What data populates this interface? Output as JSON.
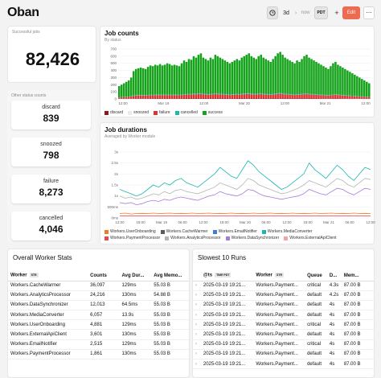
{
  "header": {
    "title": "Oban",
    "range": "3d",
    "now_label": "now",
    "timezone": "PDT",
    "plus": "+",
    "edit_label": "Edit",
    "more": "⋯"
  },
  "kpi": {
    "label": "Successful jobs",
    "value": "82,426"
  },
  "other_status": {
    "label": "Other status counts",
    "items": [
      {
        "label": "discard",
        "value": "839"
      },
      {
        "label": "snoozed",
        "value": "798"
      },
      {
        "label": "failure",
        "value": "8,273"
      },
      {
        "label": "cancelled",
        "value": "4,046"
      }
    ]
  },
  "job_counts": {
    "title": "Job counts",
    "subtitle": "By status",
    "y_ticks": [
      "700",
      "600",
      "500",
      "400",
      "300",
      "200",
      "100",
      "0"
    ],
    "x_ticks": [
      "12:00",
      "Mar 19",
      "12:00",
      "Mar 20",
      "12:00",
      "Mar 21",
      "12:00"
    ],
    "legend": [
      {
        "name": "discard",
        "color": "#8b1a1a"
      },
      {
        "name": "snoozed",
        "color": "#ebebeb"
      },
      {
        "name": "failure",
        "color": "#e03131"
      },
      {
        "name": "cancelled",
        "color": "#1cb5b0"
      },
      {
        "name": "success",
        "color": "#15a31b"
      }
    ]
  },
  "job_durations": {
    "title": "Job durations",
    "subtitle": "Averaged by Worker module",
    "y_ticks": [
      "3s",
      "2.5s",
      "2s",
      "1.5s",
      "1s",
      "500ms",
      "0ms"
    ],
    "x_ticks": [
      "12:00",
      "18:00",
      "Mar 19",
      "06:00",
      "12:00",
      "18:00",
      "Mar 20",
      "06:00",
      "12:00",
      "18:00",
      "Mar 21",
      "06:00",
      "12:00"
    ],
    "legend": [
      {
        "name": "Workers.UserOnboarding",
        "color": "#f07c22"
      },
      {
        "name": "Workers.CacheWarmer",
        "color": "#5c5c5c"
      },
      {
        "name": "Workers.EmailNotifier",
        "color": "#3b7dd8"
      },
      {
        "name": "Workers.MediaConverter",
        "color": "#1cb5b0"
      },
      {
        "name": "Workers.PaymentProcessor",
        "color": "#e2485a"
      },
      {
        "name": "Workers.AnalyticsProcessor",
        "color": "#b5b5b5"
      },
      {
        "name": "Workers.DataSynchronizer",
        "color": "#a77bd9"
      },
      {
        "name": "Workers.ExternalApiClient",
        "color": "#f5a3a3"
      }
    ]
  },
  "worker_stats": {
    "title": "Overall Worker Stats",
    "columns": [
      "Worker",
      "Counts",
      "Avg Dur...",
      "Avg Memo..."
    ],
    "tag": "STR",
    "rows": [
      [
        "Workers.CacheWarmer",
        "36,097",
        "129ms",
        "55.03 B"
      ],
      [
        "Workers.AnalyticsProcessor",
        "24,216",
        "130ms",
        "54.88 B"
      ],
      [
        "Workers.DataSynchronizer",
        "12,013",
        "64.5ms",
        "55.03 B"
      ],
      [
        "Workers.MediaConverter",
        "6,057",
        "13.9s",
        "55.03 B"
      ],
      [
        "Workers.UserOnboarding",
        "4,881",
        "129ms",
        "55.03 B"
      ],
      [
        "Workers.ExternalApiClient",
        "3,601",
        "130ms",
        "55.03 B"
      ],
      [
        "Workers.EmailNotifier",
        "2,515",
        "129ms",
        "55.03 B"
      ],
      [
        "Workers.PaymentProcessor",
        "1,861",
        "130ms",
        "55.03 B"
      ]
    ]
  },
  "slowest_runs": {
    "title": "Slowest 10 Runs",
    "columns": [
      "@ts",
      "Worker",
      "Queue",
      "D...",
      "Mem..."
    ],
    "tags": {
      "ts": "TIME PDT",
      "worker": "STR"
    },
    "rows": [
      [
        "2025-03-19 19:21...",
        "Workers.Payment...",
        "critical",
        "4.3s",
        "87.00 B"
      ],
      [
        "2025-03-19 19:21...",
        "Workers.Payment...",
        "default",
        "4.2s",
        "87.00 B"
      ],
      [
        "2025-03-19 19:21...",
        "Workers.Payment...",
        "default",
        "4s",
        "87.00 B"
      ],
      [
        "2025-03-19 19:21...",
        "Workers.Payment...",
        "default",
        "4s",
        "87.00 B"
      ],
      [
        "2025-03-19 19:21...",
        "Workers.Payment...",
        "critical",
        "4s",
        "87.00 B"
      ],
      [
        "2025-03-19 19:21...",
        "Workers.Payment...",
        "default",
        "4s",
        "87.00 B"
      ],
      [
        "2025-03-19 19:21...",
        "Workers.Payment...",
        "critical",
        "4s",
        "87.00 B"
      ],
      [
        "2025-03-19 19:21...",
        "Workers.Payment...",
        "default",
        "4s",
        "87.00 B"
      ],
      [
        "2025-03-19 19:21...",
        "Workers.Payment...",
        "default",
        "4s",
        "87.00 B"
      ]
    ]
  },
  "chart_data": [
    {
      "type": "bar",
      "title": "Job counts",
      "ylim": [
        0,
        700
      ],
      "stacked": true,
      "series_order": [
        "discard",
        "failure",
        "cancelled",
        "success"
      ],
      "bucket_totals": [
        180,
        200,
        220,
        240,
        260,
        300,
        390,
        420,
        430,
        440,
        430,
        420,
        450,
        470,
        460,
        480,
        470,
        490,
        470,
        480,
        500,
        490,
        470,
        480,
        470,
        460,
        500,
        540,
        520,
        560,
        550,
        600,
        580,
        620,
        640,
        580,
        560,
        540,
        580,
        560,
        620,
        600,
        580,
        560,
        540,
        520,
        500,
        520,
        540,
        560,
        540,
        580,
        600,
        620,
        640,
        600,
        580,
        560,
        600,
        620,
        580,
        560,
        540,
        520,
        560,
        600,
        640,
        660,
        620,
        580,
        560,
        540,
        520,
        500,
        540,
        520,
        560,
        600,
        620,
        580,
        560,
        540,
        520,
        500,
        480,
        460,
        440,
        420,
        460,
        500,
        520,
        480,
        460,
        440,
        420,
        400,
        380,
        360,
        340,
        320,
        300,
        280,
        260,
        240,
        220
      ],
      "failure_share": 0.1,
      "legend_position": "bottom"
    },
    {
      "type": "line",
      "title": "Job durations",
      "ylim": [
        0,
        3
      ],
      "series": [
        {
          "name": "Workers.MediaConverter",
          "values": [
            1.3,
            1.2,
            1.1,
            1.0,
            1.1,
            1.3,
            1.5,
            1.4,
            1.6,
            1.5,
            1.7,
            1.8,
            1.6,
            1.5,
            1.4,
            1.6,
            1.8,
            2.0,
            2.3,
            2.1,
            1.9,
            1.8,
            2.2,
            2.6,
            2.4,
            2.1,
            1.9,
            1.7,
            1.5,
            1.3,
            1.4,
            1.6,
            1.8,
            2.0,
            2.5,
            2.2,
            2.0,
            1.8,
            2.1,
            2.4,
            2.2,
            1.9,
            1.7,
            2.0,
            2.3,
            2.2
          ]
        },
        {
          "name": "Workers.AnalyticsProcessor",
          "values": [
            1.0,
            0.9,
            0.95,
            0.85,
            0.9,
            1.0,
            1.1,
            1.05,
            1.2,
            1.1,
            1.25,
            1.3,
            1.2,
            1.15,
            1.1,
            1.2,
            1.3,
            1.4,
            1.6,
            1.5,
            1.4,
            1.3,
            1.5,
            1.8,
            1.7,
            1.5,
            1.4,
            1.3,
            1.2,
            1.1,
            1.15,
            1.25,
            1.35,
            1.5,
            1.7,
            1.6,
            1.5,
            1.4,
            1.6,
            1.8,
            1.7,
            1.5,
            1.4,
            1.6,
            1.8,
            1.75
          ]
        },
        {
          "name": "Workers.DataSynchronizer",
          "values": [
            0.7,
            0.65,
            0.7,
            0.6,
            0.65,
            0.75,
            0.8,
            0.75,
            0.85,
            0.8,
            0.9,
            0.95,
            0.9,
            0.85,
            0.8,
            0.9,
            1.0,
            1.05,
            1.2,
            1.1,
            1.05,
            1.0,
            1.1,
            1.3,
            1.25,
            1.1,
            1.0,
            0.95,
            0.9,
            0.85,
            0.9,
            0.95,
            1.0,
            1.1,
            1.3,
            1.2,
            1.1,
            1.05,
            1.2,
            1.35,
            1.3,
            1.15,
            1.05,
            1.2,
            1.35,
            1.3
          ]
        },
        {
          "name": "Workers.UserOnboarding",
          "values": [
            0.2,
            0.22,
            0.18,
            0.2,
            0.21,
            0.2,
            0.22,
            0.2,
            0.21,
            0.22,
            0.2,
            0.21,
            0.2,
            0.22,
            0.2,
            0.21,
            0.22,
            0.2,
            0.21,
            0.2,
            0.22,
            0.2,
            0.21,
            0.2,
            0.22,
            0.2,
            0.21,
            0.22,
            0.2,
            0.21,
            0.2,
            0.22,
            0.2,
            0.21,
            0.2,
            0.22,
            0.2,
            0.21,
            0.22,
            0.2,
            0.21,
            0.2,
            0.22,
            0.2,
            0.21,
            0.2
          ]
        },
        {
          "name": "Workers.PaymentProcessor",
          "values": [
            0.1,
            0.1,
            0.1,
            0.1,
            0.1,
            0.1,
            0.1,
            0.1,
            0.1,
            0.1,
            0.1,
            0.1,
            0.1,
            0.1,
            0.1,
            0.1,
            0.1,
            0.1,
            0.1,
            0.1,
            0.1,
            0.1,
            0.1,
            0.1,
            0.1,
            0.1,
            0.1,
            0.1,
            0.1,
            0.1,
            0.1,
            0.1,
            0.1,
            0.1,
            0.1,
            0.1,
            0.1,
            0.1,
            0.1,
            0.1,
            0.1,
            0.1,
            0.1,
            0.1,
            0.1,
            0.1
          ]
        }
      ],
      "legend_position": "bottom"
    }
  ]
}
